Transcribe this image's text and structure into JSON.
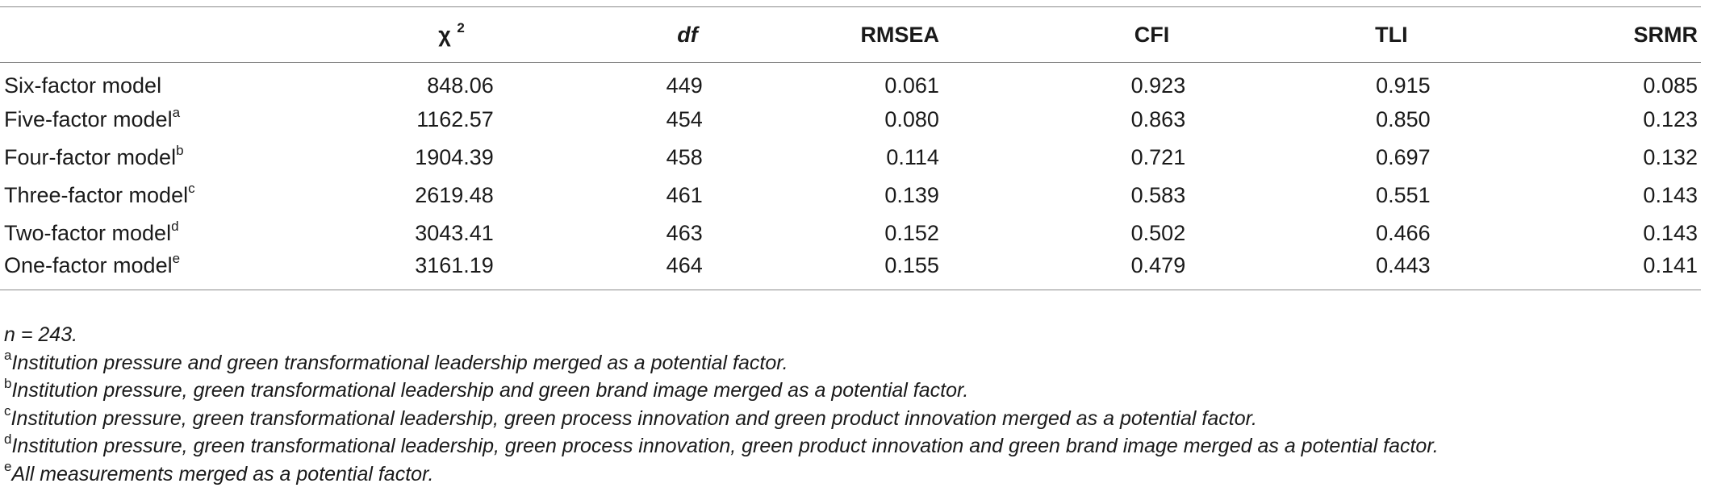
{
  "table": {
    "headers": {
      "model": "",
      "chi_symbol": "χ",
      "chi_sup": "2",
      "df": "df",
      "rmsea": "RMSEA",
      "cfi": "CFI",
      "tli": "TLI",
      "srmr": "SRMR"
    },
    "rows": [
      {
        "model": "Six-factor model",
        "sup": "",
        "chi": "848.06",
        "df": "449",
        "rmsea": "0.061",
        "cfi": "0.923",
        "tli": "0.915",
        "srmr": "0.085"
      },
      {
        "model": "Five-factor model",
        "sup": "a",
        "chi": "1162.57",
        "df": "454",
        "rmsea": "0.080",
        "cfi": "0.863",
        "tli": "0.850",
        "srmr": "0.123"
      },
      {
        "model": "Four-factor model",
        "sup": "b",
        "chi": "1904.39",
        "df": "458",
        "rmsea": "0.114",
        "cfi": "0.721",
        "tli": "0.697",
        "srmr": "0.132"
      },
      {
        "model": "Three-factor model",
        "sup": "c",
        "chi": "2619.48",
        "df": "461",
        "rmsea": "0.139",
        "cfi": "0.583",
        "tli": "0.551",
        "srmr": "0.143"
      },
      {
        "model": "Two-factor model",
        "sup": "d",
        "chi": "3043.41",
        "df": "463",
        "rmsea": "0.152",
        "cfi": "0.502",
        "tli": "0.466",
        "srmr": "0.143"
      },
      {
        "model": "One-factor model",
        "sup": "e",
        "chi": "3161.19",
        "df": "464",
        "rmsea": "0.155",
        "cfi": "0.479",
        "tli": "0.443",
        "srmr": "0.141"
      }
    ]
  },
  "notes": {
    "n": "n = 243.",
    "items": [
      {
        "sup": "a",
        "text": "Institution pressure and green transformational leadership merged as a potential factor."
      },
      {
        "sup": "b",
        "text": "Institution pressure, green transformational leadership and green brand image merged as a potential factor."
      },
      {
        "sup": "c",
        "text": "Institution pressure, green transformational leadership, green process innovation and green product innovation merged as a potential factor."
      },
      {
        "sup": "d",
        "text": "Institution pressure, green transformational leadership, green process innovation, green product innovation and green brand image merged as a potential factor."
      },
      {
        "sup": "e",
        "text": "All measurements merged as a potential factor."
      }
    ]
  }
}
